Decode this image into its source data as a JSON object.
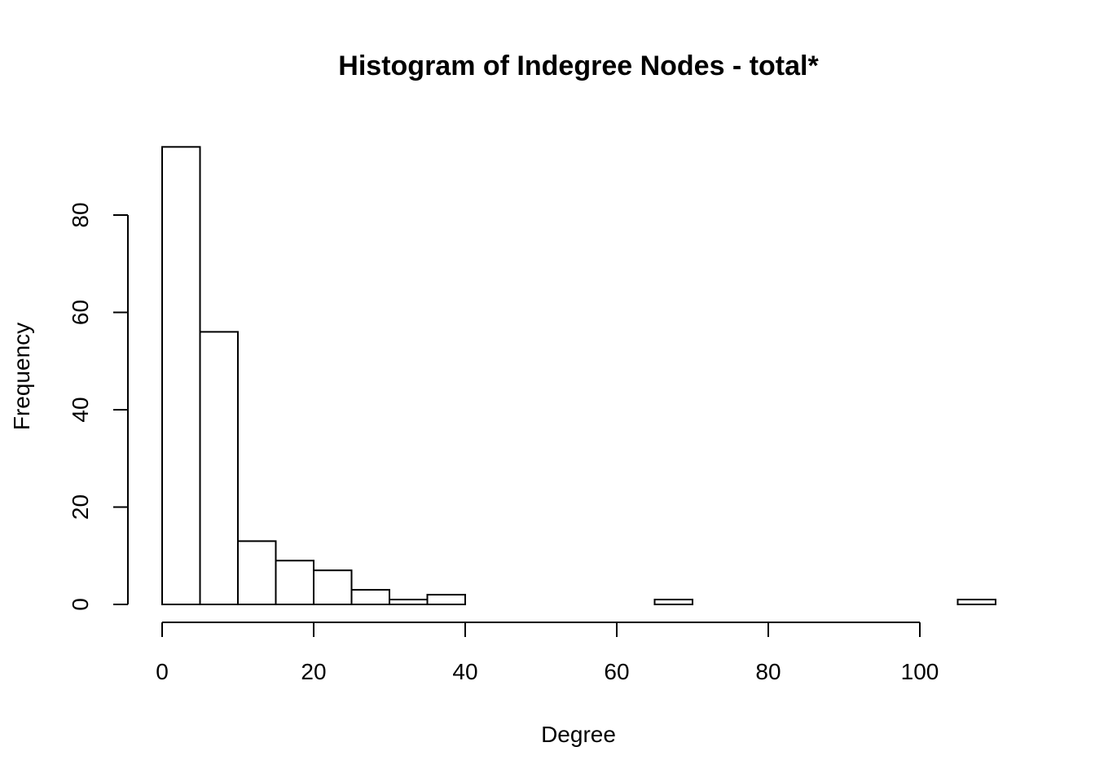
{
  "chart_data": {
    "type": "bar",
    "subtype": "histogram",
    "title": "Histogram of Indegree Nodes - total*",
    "xlabel": "Degree",
    "ylabel": "Frequency",
    "bin_width": 5,
    "bins": [
      {
        "start": 0,
        "end": 5,
        "count": 94
      },
      {
        "start": 5,
        "end": 10,
        "count": 56
      },
      {
        "start": 10,
        "end": 15,
        "count": 13
      },
      {
        "start": 15,
        "end": 20,
        "count": 9
      },
      {
        "start": 20,
        "end": 25,
        "count": 7
      },
      {
        "start": 25,
        "end": 30,
        "count": 3
      },
      {
        "start": 30,
        "end": 35,
        "count": 1
      },
      {
        "start": 35,
        "end": 40,
        "count": 2
      },
      {
        "start": 40,
        "end": 45,
        "count": 0
      },
      {
        "start": 45,
        "end": 50,
        "count": 0
      },
      {
        "start": 50,
        "end": 55,
        "count": 0
      },
      {
        "start": 55,
        "end": 60,
        "count": 0
      },
      {
        "start": 60,
        "end": 65,
        "count": 0
      },
      {
        "start": 65,
        "end": 70,
        "count": 1
      },
      {
        "start": 70,
        "end": 75,
        "count": 0
      },
      {
        "start": 75,
        "end": 80,
        "count": 0
      },
      {
        "start": 80,
        "end": 85,
        "count": 0
      },
      {
        "start": 85,
        "end": 90,
        "count": 0
      },
      {
        "start": 90,
        "end": 95,
        "count": 0
      },
      {
        "start": 95,
        "end": 100,
        "count": 0
      },
      {
        "start": 100,
        "end": 105,
        "count": 0
      },
      {
        "start": 105,
        "end": 110,
        "count": 1
      }
    ],
    "xlim": [
      0,
      110
    ],
    "ylim": [
      0,
      94
    ],
    "x_ticks": [
      0,
      20,
      40,
      60,
      80,
      100
    ],
    "y_ticks": [
      0,
      20,
      40,
      60,
      80
    ],
    "grid": false,
    "legend": "none",
    "bar_fill": "#ffffff",
    "bar_stroke": "#000000"
  }
}
